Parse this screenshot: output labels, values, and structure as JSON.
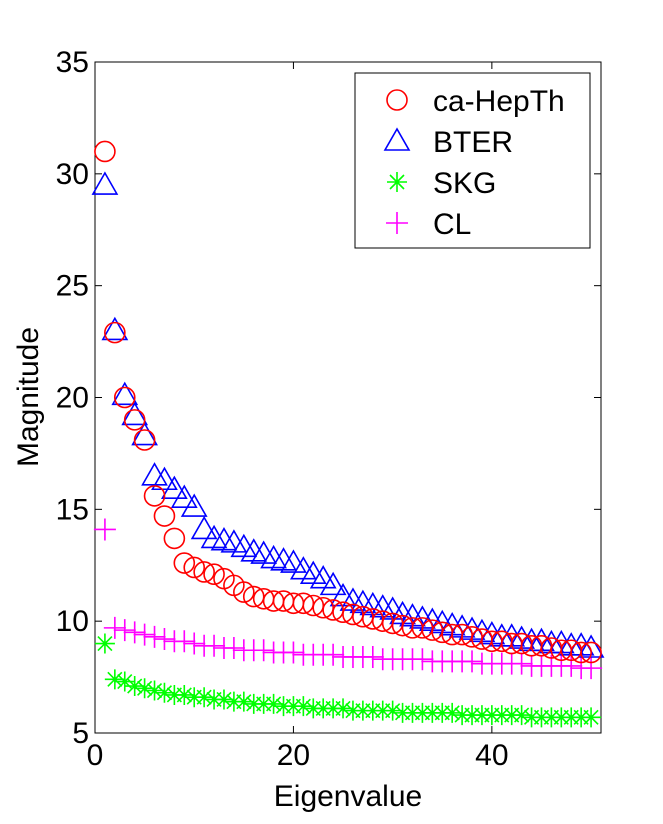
{
  "chart_data": {
    "type": "scatter",
    "xlabel": "Eigenvalue",
    "ylabel": "Magnitude",
    "xlim": [
      0,
      51
    ],
    "ylim": [
      5,
      35
    ],
    "xticks": [
      0,
      20,
      40
    ],
    "yticks": [
      5,
      10,
      15,
      20,
      25,
      30,
      35
    ],
    "xtick_labels": [
      "0",
      "20",
      "40"
    ],
    "ytick_labels": [
      "5",
      "10",
      "15",
      "20",
      "25",
      "30",
      "35"
    ],
    "legend_position": "top-right",
    "grid": false,
    "series": [
      {
        "name": "ca-HepTh",
        "marker": "circle",
        "color": "#ff0000",
        "values": [
          31.0,
          22.9,
          20.0,
          19.0,
          18.1,
          15.6,
          14.7,
          13.7,
          12.6,
          12.4,
          12.2,
          12.1,
          11.9,
          11.6,
          11.3,
          11.1,
          11.0,
          10.9,
          10.9,
          10.8,
          10.8,
          10.7,
          10.6,
          10.5,
          10.4,
          10.3,
          10.2,
          10.1,
          10.0,
          9.9,
          9.8,
          9.7,
          9.7,
          9.6,
          9.5,
          9.4,
          9.4,
          9.3,
          9.2,
          9.1,
          9.1,
          9.0,
          9.0,
          8.9,
          8.9,
          8.8,
          8.7,
          8.7,
          8.6,
          8.6
        ]
      },
      {
        "name": "BTER",
        "marker": "triangle",
        "color": "#0000ff",
        "values": [
          29.5,
          23.0,
          20.1,
          19.2,
          18.3,
          16.5,
          16.3,
          15.9,
          15.5,
          15.1,
          14.1,
          13.7,
          13.6,
          13.5,
          13.3,
          13.1,
          13.0,
          12.8,
          12.7,
          12.6,
          12.3,
          12.1,
          11.9,
          11.6,
          11.1,
          10.9,
          10.8,
          10.7,
          10.6,
          10.5,
          10.3,
          10.2,
          10.1,
          10.0,
          9.9,
          9.8,
          9.7,
          9.6,
          9.5,
          9.4,
          9.3,
          9.3,
          9.2,
          9.1,
          9.1,
          9.0,
          9.0,
          8.9,
          8.9,
          8.8
        ]
      },
      {
        "name": "SKG",
        "marker": "asterisk",
        "color": "#00ff00",
        "values": [
          9.0,
          7.4,
          7.3,
          7.1,
          7.0,
          6.9,
          6.8,
          6.7,
          6.7,
          6.6,
          6.6,
          6.5,
          6.5,
          6.4,
          6.4,
          6.3,
          6.3,
          6.3,
          6.2,
          6.2,
          6.2,
          6.1,
          6.1,
          6.1,
          6.1,
          6.0,
          6.0,
          6.0,
          6.0,
          6.0,
          5.9,
          5.9,
          5.9,
          5.9,
          5.9,
          5.9,
          5.8,
          5.8,
          5.8,
          5.8,
          5.8,
          5.8,
          5.8,
          5.7,
          5.7,
          5.7,
          5.7,
          5.7,
          5.7,
          5.7
        ]
      },
      {
        "name": "CL",
        "marker": "plus",
        "color": "#ff00ff",
        "values": [
          14.1,
          9.7,
          9.6,
          9.5,
          9.4,
          9.3,
          9.2,
          9.1,
          9.1,
          9.0,
          8.9,
          8.9,
          8.8,
          8.8,
          8.7,
          8.7,
          8.7,
          8.6,
          8.6,
          8.6,
          8.5,
          8.5,
          8.5,
          8.5,
          8.4,
          8.4,
          8.4,
          8.4,
          8.3,
          8.3,
          8.3,
          8.3,
          8.3,
          8.2,
          8.2,
          8.2,
          8.2,
          8.2,
          8.1,
          8.1,
          8.1,
          8.1,
          8.1,
          8.0,
          8.0,
          8.0,
          8.0,
          8.0,
          7.9,
          7.9
        ]
      }
    ]
  }
}
